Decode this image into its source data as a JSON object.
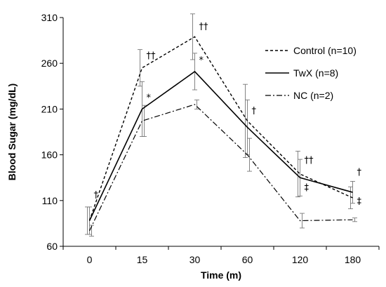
{
  "chart_data": {
    "type": "line",
    "xlabel": "Time (m)",
    "ylabel": "Blood Sugar (mg/dL)",
    "ylim": [
      60,
      310
    ],
    "yticks": [
      60,
      110,
      160,
      210,
      260,
      310
    ],
    "categories": [
      "0",
      "15",
      "30",
      "60",
      "120",
      "180"
    ],
    "grid": false,
    "legend_position": "right",
    "series": [
      {
        "name": "Control (n=10)",
        "style": "dashed",
        "values": [
          88,
          255,
          289,
          197,
          139,
          113
        ],
        "errors": [
          15,
          20,
          25,
          40,
          25,
          12
        ]
      },
      {
        "name": "TwX (n=8)",
        "style": "solid",
        "values": [
          88,
          210,
          251,
          190,
          135,
          119
        ],
        "errors": [
          15,
          30,
          20,
          30,
          20,
          12
        ]
      },
      {
        "name": "NC (n=2)",
        "style": "dashdot",
        "values": [
          77,
          197,
          215,
          160,
          88,
          89
        ],
        "errors": [
          6,
          17,
          5,
          18,
          8,
          2
        ]
      }
    ],
    "annotations": [
      {
        "text": "†",
        "category": 0,
        "value": 113
      },
      {
        "text": "††",
        "category": 1,
        "value": 265
      },
      {
        "text": "*",
        "category": 1,
        "value": 219
      },
      {
        "text": "††",
        "category": 2,
        "value": 297
      },
      {
        "text": "*",
        "category": 2,
        "value": 260
      },
      {
        "text": "†",
        "category": 3,
        "value": 205
      },
      {
        "text": "††",
        "category": 4,
        "value": 151
      },
      {
        "text": "‡",
        "category": 4,
        "value": 121
      },
      {
        "text": "†",
        "category": 5,
        "value": 138
      },
      {
        "text": "‡",
        "category": 5,
        "value": 106
      }
    ]
  }
}
